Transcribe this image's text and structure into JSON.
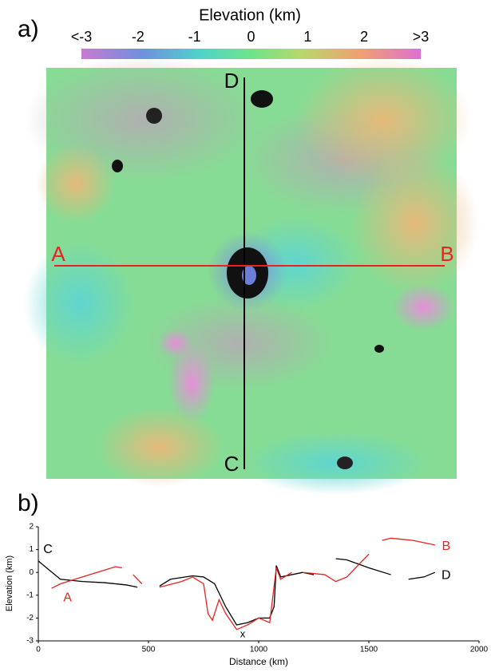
{
  "panel_labels": [
    "a)",
    "b)"
  ],
  "map": {
    "colorbar_title": "Elevation (km)",
    "colorbar_lim": [
      -3,
      3
    ],
    "colorbar_ticks": [
      {
        "value": -3,
        "label": "<-3"
      },
      -2,
      -1,
      0,
      1,
      2,
      {
        "value": 3,
        "label": ">3"
      }
    ],
    "profile_labels": {
      "A": "A",
      "B": "B",
      "C": "C",
      "D": "D"
    }
  },
  "chart_data": {
    "type": "line",
    "x_label": "Distance (km)",
    "y_label": "Elevation (km)",
    "xlim": [
      0,
      2000
    ],
    "xticks": [
      0,
      500,
      1000,
      1500,
      2000
    ],
    "ylim": [
      -3,
      2
    ],
    "yticks": [
      -3,
      -2,
      -1,
      0,
      1,
      2
    ],
    "annotations": [
      "x"
    ],
    "series": [
      {
        "start_label": "C",
        "end_label": "D",
        "color": "#000000",
        "x": [
          0,
          50,
          100,
          200,
          300,
          400,
          450,
          480,
          550,
          600,
          700,
          750,
          800,
          850,
          900,
          950,
          1000,
          1050,
          1070,
          1080,
          1100,
          1150,
          1200,
          1250,
          1300,
          1350,
          1400,
          1500,
          1600,
          1650,
          1680,
          1750,
          1800
        ],
        "values": [
          0.5,
          0.1,
          -0.3,
          -0.4,
          -0.45,
          -0.55,
          -0.65,
          null,
          -0.6,
          -0.3,
          -0.15,
          -0.2,
          -0.5,
          -1.5,
          -2.3,
          -2.2,
          -2.0,
          -2.0,
          -1.5,
          0.3,
          -0.2,
          -0.1,
          0.0,
          -0.1,
          null,
          0.6,
          0.55,
          0.2,
          -0.1,
          null,
          -0.3,
          -0.2,
          0.0
        ]
      },
      {
        "start_label": "A",
        "end_label": "B",
        "color": "#e8231f",
        "x": [
          60,
          100,
          200,
          300,
          350,
          380,
          400,
          430,
          470,
          500,
          550,
          650,
          700,
          750,
          770,
          790,
          820,
          850,
          900,
          950,
          1000,
          1050,
          1080,
          1100,
          1150,
          1180,
          1200,
          1300,
          1350,
          1400,
          1450,
          1500,
          1530,
          1560,
          1600,
          1700,
          1800
        ],
        "values": [
          -0.7,
          -0.5,
          -0.2,
          0.1,
          0.25,
          0.2,
          null,
          -0.1,
          -0.5,
          null,
          -0.65,
          -0.4,
          -0.2,
          -0.5,
          -1.8,
          -2.1,
          -1.2,
          -1.8,
          -2.5,
          -2.3,
          -2.0,
          -2.2,
          0.2,
          -0.3,
          0.0,
          null,
          0.0,
          -0.1,
          -0.4,
          -0.2,
          0.3,
          0.8,
          null,
          1.4,
          1.5,
          1.4,
          1.2
        ]
      }
    ]
  }
}
